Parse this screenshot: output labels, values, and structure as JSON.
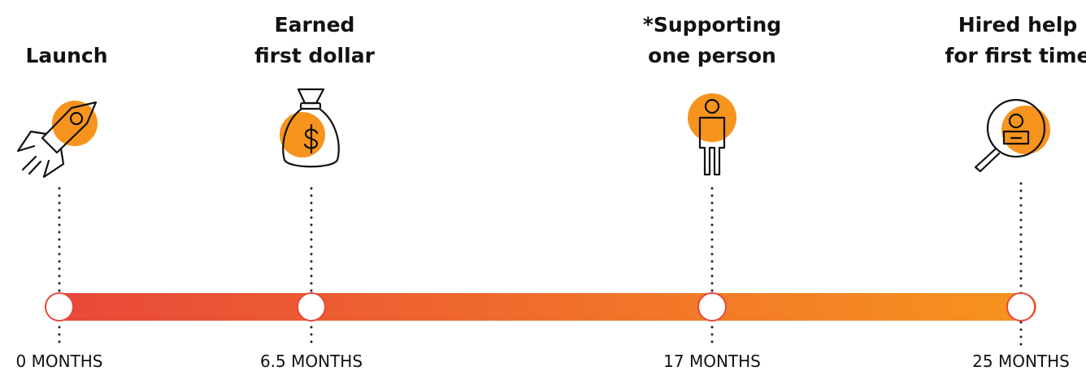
{
  "milestones": [
    {
      "title": [
        "Launch"
      ],
      "time": "0 MONTHS"
    },
    {
      "title": [
        "Earned",
        "first dollar"
      ],
      "time": "6.5 MONTHS"
    },
    {
      "title": [
        "*Supporting",
        "one person"
      ],
      "time": "17 MONTHS"
    },
    {
      "title": [
        "Hired help",
        "for first time"
      ],
      "time": "25 MONTHS"
    }
  ]
}
